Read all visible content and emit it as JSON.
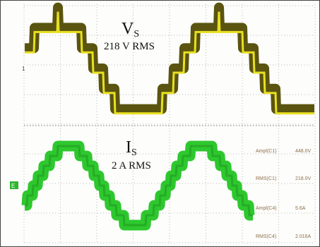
{
  "traces": {
    "voltage": {
      "symbol": "V",
      "subscript": "S",
      "caption": "218 V RMS",
      "marker": "1"
    },
    "current": {
      "symbol": "I",
      "subscript": "S",
      "caption": "2 A RMS",
      "marker": "E"
    }
  },
  "measurements": [
    {
      "label": "Ampl(C1)",
      "value": "448.0V"
    },
    {
      "label": "RMS(C1)",
      "value": "218.0V"
    },
    {
      "label": "Ampl(C4)",
      "value": "5.6A"
    },
    {
      "label": "RMS(C4)",
      "value": "2.016A"
    }
  ]
}
